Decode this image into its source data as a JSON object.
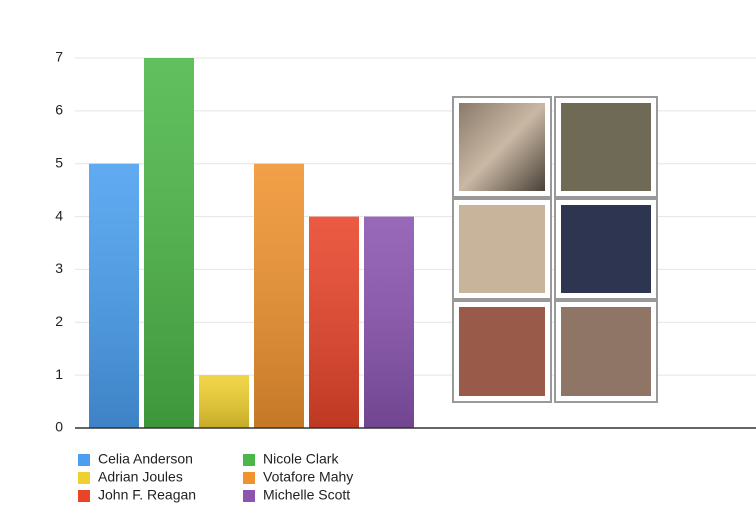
{
  "chart_data": {
    "type": "bar",
    "categories": [
      null
    ],
    "series": [
      {
        "name": "Celia Anderson",
        "color": "#4a9ff0",
        "values": [
          5
        ]
      },
      {
        "name": "Nicole Clark",
        "color": "#4cb748",
        "values": [
          7
        ]
      },
      {
        "name": "Adrian Joules",
        "color": "#f0d030",
        "values": [
          1
        ]
      },
      {
        "name": "Votafore Mahy",
        "color": "#f0932f",
        "values": [
          5
        ]
      },
      {
        "name": "John F. Reagan",
        "color": "#e8442a",
        "values": [
          4
        ]
      },
      {
        "name": "Michelle Scott",
        "color": "#8a54b0",
        "values": [
          4
        ]
      }
    ],
    "ylim": [
      0,
      7
    ],
    "yticks": [
      0,
      1,
      2,
      3,
      4,
      5,
      6,
      7
    ],
    "grid": true
  }
}
